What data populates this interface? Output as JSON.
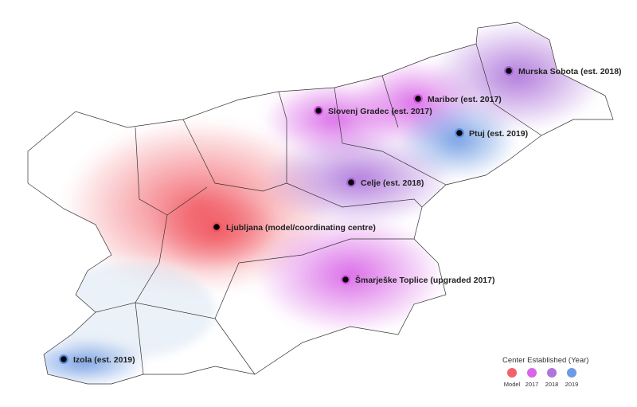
{
  "legend": {
    "title": "Center Established (Year)",
    "items": [
      {
        "label": "Model",
        "color": "#f0505a"
      },
      {
        "label": "2017",
        "color": "#d454e4"
      },
      {
        "label": "2018",
        "color": "#a566d6"
      },
      {
        "label": "2019",
        "color": "#5e90e0"
      }
    ]
  },
  "centres": [
    {
      "label": "Murska Sobota (est. 2018)",
      "category": "2018"
    },
    {
      "label": "Maribor (est. 2017)",
      "category": "2017"
    },
    {
      "label": "Slovenj Gradec (est. 2017)",
      "category": "2017"
    },
    {
      "label": "Ptuj (est. 2019)",
      "category": "2019"
    },
    {
      "label": "Celje (est. 2018)",
      "category": "2018"
    },
    {
      "label": "Ljubljana (model/coordinating centre)",
      "category": "Model"
    },
    {
      "label": "Šmarješke Toplice (upgraded 2017)",
      "category": "2017"
    },
    {
      "label": "Izola (est. 2019)",
      "category": "2019"
    }
  ]
}
